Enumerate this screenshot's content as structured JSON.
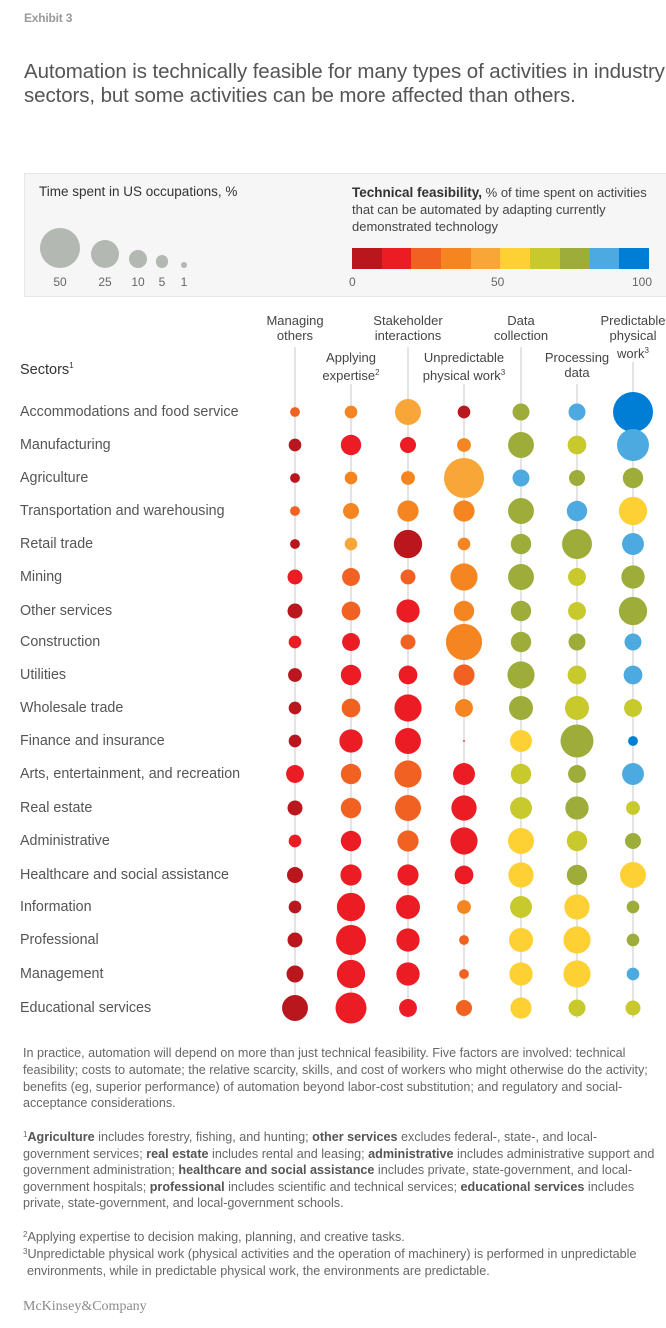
{
  "exhibit_label": "Exhibit 3",
  "title": "Automation is technically feasible for many types of activities in industry sectors, but some activities can be more affected than others.",
  "legend": {
    "time_title": "Time spent in US occupations, %",
    "size_values": [
      50,
      25,
      10,
      5,
      1
    ],
    "size_labels": [
      "50",
      "25",
      "10",
      "5",
      "1"
    ],
    "feas_title_bold": "Technical feasibility,",
    "feas_title_rest": " % of time spent on activities that can be automated by adapting currently demonstrated technology",
    "scale_colors": [
      "#b9161d",
      "#ec1c24",
      "#f16122",
      "#f58520",
      "#f7a637",
      "#fdd034",
      "#c7c92d",
      "#9ead3a",
      "#4daae0",
      "#007ed6"
    ],
    "scale_labels": [
      "0",
      "50",
      "100"
    ]
  },
  "chart_data": {
    "type": "bubble-matrix",
    "title": "Automation is technically feasible for many types of activities in industry sectors, but some activities can be more affected than others.",
    "size_encoding": "Time spent in US occupations, %",
    "color_encoding": "Technical feasibility, % of time spent on activities that can be automated (0-100, bucketed by 10)",
    "columns": [
      {
        "label_lines": [
          "Managing",
          "others"
        ],
        "sup": ""
      },
      {
        "label_lines": [
          "Applying",
          "expertise"
        ],
        "sup": "2"
      },
      {
        "label_lines": [
          "Stakeholder",
          "interactions"
        ],
        "sup": ""
      },
      {
        "label_lines": [
          "Unpredictable",
          "physical work"
        ],
        "sup": "3"
      },
      {
        "label_lines": [
          "Data",
          "collection"
        ],
        "sup": ""
      },
      {
        "label_lines": [
          "Processing",
          "data"
        ],
        "sup": ""
      },
      {
        "label_lines": [
          "Predictable",
          "physical",
          "work"
        ],
        "sup": "3"
      }
    ],
    "sectors_title": "Sectors",
    "sectors_title_sup": "1",
    "rows": [
      {
        "sector": "Accommodations and food service",
        "time": [
          3,
          5,
          21,
          5,
          9,
          9,
          50
        ],
        "feasibility": [
          25,
          35,
          45,
          5,
          75,
          85,
          95
        ]
      },
      {
        "sector": "Manufacturing",
        "time": [
          5,
          13,
          8,
          6,
          21,
          11,
          32
        ],
        "feasibility": [
          5,
          15,
          15,
          35,
          75,
          65,
          85
        ]
      },
      {
        "sector": "Agriculture",
        "time": [
          3,
          5,
          6,
          50,
          9,
          8,
          13
        ],
        "feasibility": [
          5,
          35,
          35,
          45,
          85,
          75,
          75
        ]
      },
      {
        "sector": "Transportation and warehousing",
        "time": [
          3,
          8,
          14,
          14,
          21,
          13,
          25
        ],
        "feasibility": [
          25,
          35,
          35,
          35,
          75,
          85,
          55
        ]
      },
      {
        "sector": "Retail trade",
        "time": [
          3,
          5,
          25,
          5,
          13,
          28,
          15
        ],
        "feasibility": [
          5,
          45,
          5,
          35,
          75,
          75,
          85
        ]
      },
      {
        "sector": "Mining",
        "time": [
          7,
          10,
          7,
          23,
          21,
          10,
          17
        ],
        "feasibility": [
          15,
          25,
          25,
          35,
          75,
          65,
          75
        ]
      },
      {
        "sector": "Other services",
        "time": [
          7,
          11,
          17,
          13,
          13,
          10,
          25
        ],
        "feasibility": [
          5,
          25,
          15,
          35,
          75,
          65,
          75
        ]
      },
      {
        "sector": "Construction",
        "time": [
          5,
          10,
          7,
          41,
          13,
          9,
          9
        ],
        "feasibility": [
          15,
          15,
          25,
          35,
          75,
          75,
          85
        ]
      },
      {
        "sector": "Utilities",
        "time": [
          6,
          13,
          11,
          14,
          23,
          11,
          11
        ],
        "feasibility": [
          5,
          15,
          15,
          25,
          75,
          65,
          85
        ]
      },
      {
        "sector": "Wholesale trade",
        "time": [
          5,
          11,
          23,
          10,
          18,
          18,
          10
        ],
        "feasibility": [
          5,
          25,
          15,
          35,
          75,
          65,
          65
        ]
      },
      {
        "sector": "Finance and insurance",
        "time": [
          5,
          17,
          21,
          0.1,
          15,
          34,
          3
        ],
        "feasibility": [
          5,
          15,
          15,
          15,
          55,
          75,
          95
        ]
      },
      {
        "sector": "Arts, entertainment, and recreation",
        "time": [
          10,
          13,
          23,
          15,
          13,
          10,
          15
        ],
        "feasibility": [
          15,
          25,
          25,
          15,
          65,
          75,
          85
        ]
      },
      {
        "sector": "Real estate",
        "time": [
          7,
          13,
          21,
          20,
          15,
          17,
          6
        ],
        "feasibility": [
          5,
          25,
          25,
          15,
          65,
          75,
          65
        ]
      },
      {
        "sector": "Administrative",
        "time": [
          5,
          13,
          14,
          23,
          21,
          13,
          8
        ],
        "feasibility": [
          15,
          15,
          25,
          15,
          55,
          65,
          75
        ]
      },
      {
        "sector": "Healthcare and social assistance",
        "time": [
          8,
          14,
          14,
          11,
          20,
          13,
          21
        ],
        "feasibility": [
          5,
          15,
          15,
          15,
          55,
          75,
          55
        ]
      },
      {
        "sector": "Information",
        "time": [
          5,
          25,
          18,
          6,
          15,
          20,
          5
        ],
        "feasibility": [
          5,
          15,
          15,
          35,
          65,
          55,
          75
        ]
      },
      {
        "sector": "Professional",
        "time": [
          7,
          28,
          17,
          3,
          18,
          23,
          5
        ],
        "feasibility": [
          5,
          15,
          15,
          25,
          55,
          55,
          75
        ]
      },
      {
        "sector": "Management",
        "time": [
          9,
          25,
          17,
          3,
          17,
          23,
          5
        ],
        "feasibility": [
          5,
          15,
          15,
          25,
          55,
          55,
          85
        ]
      },
      {
        "sector": "Educational services",
        "time": [
          21,
          30,
          10,
          8,
          14,
          9,
          7
        ],
        "feasibility": [
          5,
          15,
          15,
          25,
          55,
          65,
          65
        ]
      }
    ]
  },
  "footer_paragraph": "In practice, automation will depend on more than just technical feasibility. Five factors are involved: technical feasibility; costs to automate; the relative scarcity, skills, and cost of workers who might otherwise do the activity; benefits (eg, superior performance) of automation beyond labor-cost substitution; and regulatory and social-acceptance considerations.",
  "footnotes": {
    "fn1_parts": [
      {
        "b": true,
        "t": "Agriculture"
      },
      {
        "b": false,
        "t": " includes forestry, fishing, and hunting; "
      },
      {
        "b": true,
        "t": "other services"
      },
      {
        "b": false,
        "t": " excludes federal-, state-, and local-government services; "
      },
      {
        "b": true,
        "t": "real estate"
      },
      {
        "b": false,
        "t": " includes rental and leasing; "
      },
      {
        "b": true,
        "t": "administrative"
      },
      {
        "b": false,
        "t": " includes administrative support and government administration; "
      },
      {
        "b": true,
        "t": "healthcare and social assistance"
      },
      {
        "b": false,
        "t": " includes private, state-government, and local-government hospitals; "
      },
      {
        "b": true,
        "t": "professional"
      },
      {
        "b": false,
        "t": " includes scientific and technical services; "
      },
      {
        "b": true,
        "t": "educational services"
      },
      {
        "b": false,
        "t": " includes private, state-government, and local-government schools."
      }
    ],
    "fn2": "Applying expertise to decision making, planning, and creative tasks.",
    "fn3": "Unpredictable physical work (physical activities and the operation of machinery) is performed in unpredictable environments, while in predictable physical work, the environments are predictable."
  },
  "logo": "McKinsey&Company"
}
